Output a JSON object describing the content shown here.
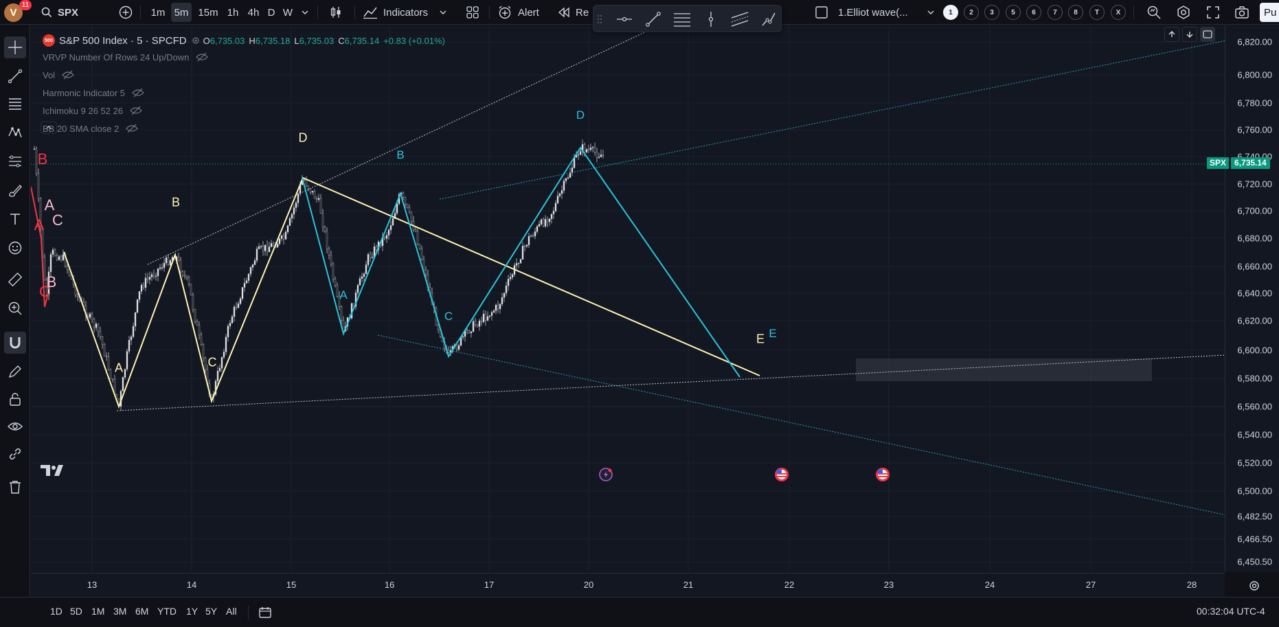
{
  "topbar": {
    "avatar_letter": "V",
    "avatar_badge": "11",
    "symbol": "SPX",
    "intervals": [
      "1m",
      "5m",
      "15m",
      "1h",
      "4h",
      "D",
      "W"
    ],
    "active_interval": "5m",
    "indicators_label": "Indicators",
    "alert_label": "Alert",
    "replay_label": "Re",
    "layout_name": "1.Elliot wave(...",
    "layout_slots": [
      "1",
      "2",
      "3",
      "5",
      "6",
      "7",
      "8",
      "T",
      "X"
    ],
    "publish_label": "Pu"
  },
  "legend": {
    "title": "S&P 500 Index · 5 · SPCFD",
    "logo_text": "500",
    "open_label": "O",
    "open": "6,735.03",
    "high_label": "H",
    "high": "6,735.18",
    "low_label": "L",
    "low": "6,735.03",
    "close_label": "C",
    "close": "6,735.14",
    "change": "+0.83 (+0.01%)",
    "indicators": [
      "VRVP Number Of Rows 24 Up/Down",
      "Vol",
      "Harmonic Indicator 5",
      "Ichimoku 9 26 52 26",
      "BB 20 SMA close 2"
    ]
  },
  "price_scale": {
    "ticks": [
      "6,820.00",
      "6,800.00",
      "6,780.00",
      "6,760.00",
      "6,740.00",
      "6,720.00",
      "6,700.00",
      "6,680.00",
      "6,660.00",
      "6,640.00",
      "6,620.00",
      "6,600.00",
      "6,580.00",
      "6,560.00",
      "6,540.00",
      "6,520.00",
      "6,500.00",
      "6,482.50",
      "6,466.50",
      "6,450.50"
    ],
    "tag_symbol": "SPX",
    "tag_value": "6,735.14"
  },
  "time_scale": {
    "labels": [
      "13",
      "14",
      "15",
      "16",
      "17",
      "20",
      "21",
      "22",
      "23",
      "24",
      "27",
      "28"
    ]
  },
  "wave_labels": {
    "yellow": [
      "A",
      "B",
      "C",
      "D",
      "E"
    ],
    "cyan": [
      "A",
      "B",
      "C",
      "D",
      "E"
    ],
    "pink": [
      "A",
      "B",
      "C"
    ],
    "red": [
      "B",
      "A",
      "C"
    ]
  },
  "bottom": {
    "ranges": [
      "1D",
      "5D",
      "1M",
      "3M",
      "6M",
      "YTD",
      "1Y",
      "5Y",
      "All"
    ],
    "clock": "00:32:04 UTC-4"
  },
  "colors": {
    "background": "#131722",
    "up": "#26a69a",
    "down": "#ef5350",
    "yellow_wave": "#fff3b0",
    "cyan_wave": "#26c6da",
    "pink_label": "#f8bbd0",
    "red_label": "#f23645"
  }
}
